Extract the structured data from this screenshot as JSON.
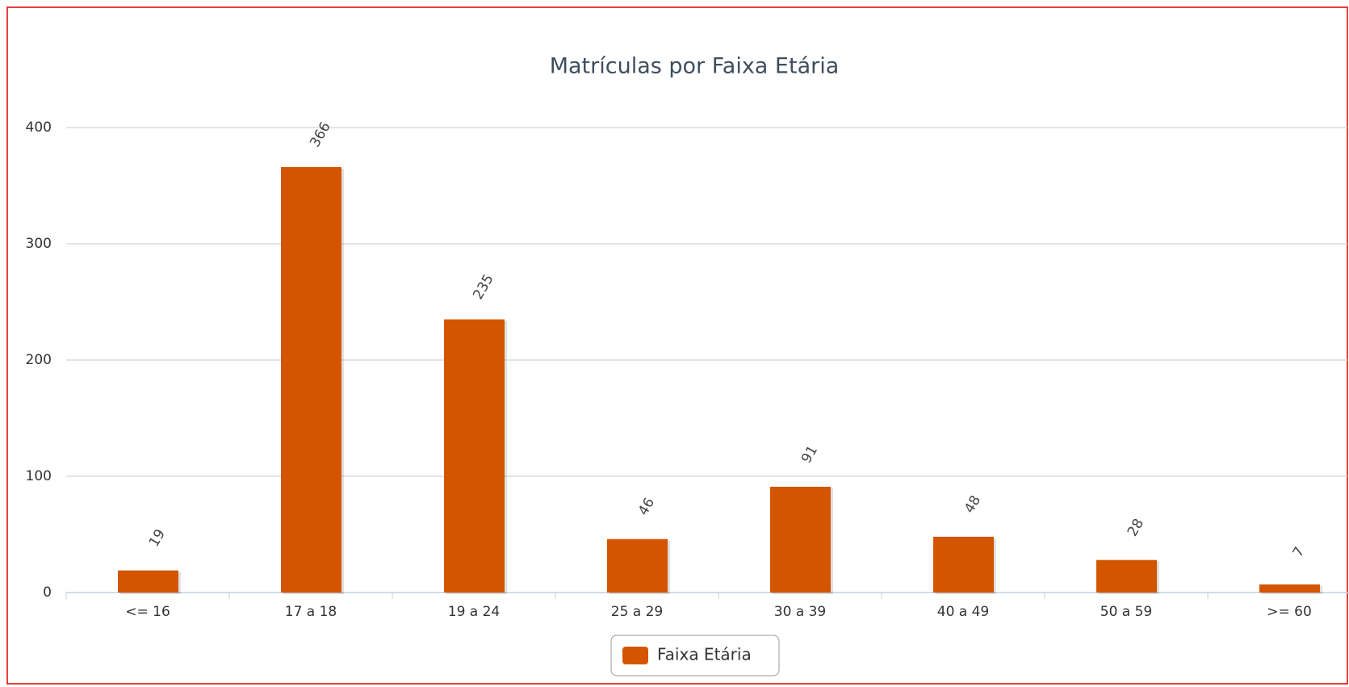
{
  "chart_data": {
    "type": "bar",
    "title": "Matrículas por Faixa Etária",
    "categories": [
      "<= 16",
      "17 a 18",
      "19 a 24",
      "25 a 29",
      "30 a 39",
      "40 a 49",
      "50 a 59",
      ">= 60"
    ],
    "series": [
      {
        "name": "Faixa Etária",
        "color": "#d45500",
        "values": [
          19,
          366,
          235,
          46,
          91,
          48,
          28,
          7
        ]
      }
    ],
    "ylim": [
      0,
      400
    ],
    "yticks": [
      0,
      100,
      200,
      300,
      400
    ],
    "grid": true,
    "legend": "bottom"
  }
}
